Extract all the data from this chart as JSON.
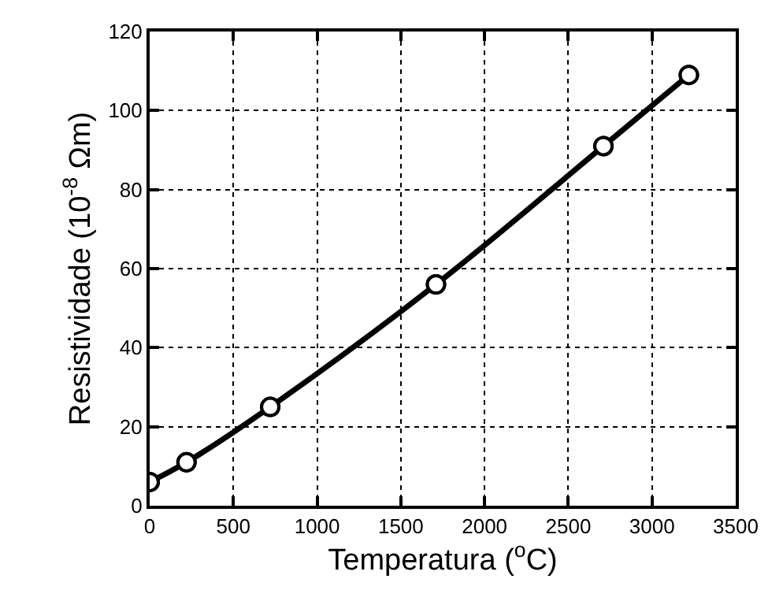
{
  "chart_data": {
    "type": "line",
    "xlabel": "Temperatura ($^{o}$C)",
    "ylabel": "Resistividade (10$^{-8}$ Ωm)",
    "x": [
      0,
      220,
      720,
      1710,
      2710,
      3220
    ],
    "series": [
      {
        "color": "#000000",
        "values": [
          6,
          11,
          25,
          56,
          91,
          109
        ]
      }
    ],
    "xlim": [
      0,
      3500
    ],
    "xticks": [
      0,
      500,
      1000,
      1500,
      2000,
      2500,
      3000,
      3500
    ],
    "ylim": [
      0,
      120
    ],
    "yticks": [
      0,
      20,
      40,
      60,
      80,
      100,
      120
    ],
    "grid": true,
    "marker": "circle",
    "line_style": "solid"
  }
}
